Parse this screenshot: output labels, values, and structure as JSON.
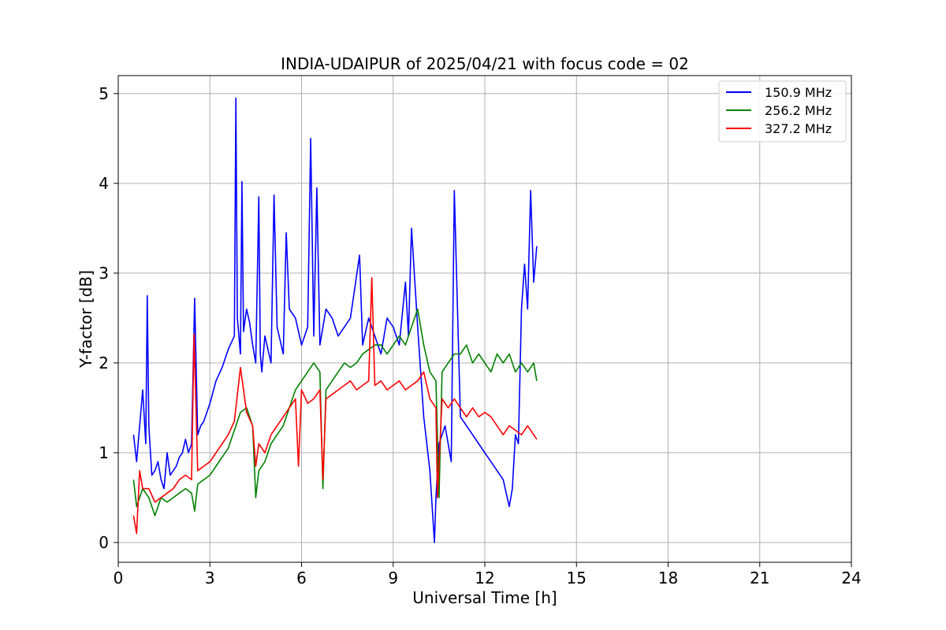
{
  "chart_data": {
    "type": "line",
    "title": "INDIA-UDAIPUR of 2025/04/21 with focus code = 02",
    "xlabel": "Universal Time [h]",
    "ylabel": "Y-factor [dB]",
    "xlim": [
      0,
      24
    ],
    "ylim": [
      -0.22,
      5.2
    ],
    "xticks": [
      0,
      3,
      6,
      9,
      12,
      15,
      18,
      21,
      24
    ],
    "yticks": [
      0,
      1,
      2,
      3,
      4,
      5
    ],
    "grid": true,
    "legend_position": "top-right",
    "series": [
      {
        "name": "150.9 MHz",
        "color": "#0000ff",
        "x": [
          0.5,
          0.6,
          0.75,
          0.8,
          0.9,
          0.95,
          1.0,
          1.1,
          1.2,
          1.3,
          1.4,
          1.5,
          1.6,
          1.7,
          1.8,
          1.9,
          2.0,
          2.1,
          2.2,
          2.3,
          2.4,
          2.5,
          2.6,
          2.7,
          2.8,
          3.0,
          3.2,
          3.4,
          3.6,
          3.8,
          3.85,
          3.9,
          4.0,
          4.05,
          4.1,
          4.2,
          4.3,
          4.4,
          4.5,
          4.6,
          4.65,
          4.7,
          4.8,
          5.0,
          5.1,
          5.2,
          5.4,
          5.5,
          5.6,
          5.8,
          6.0,
          6.2,
          6.3,
          6.4,
          6.5,
          6.6,
          6.8,
          7.0,
          7.2,
          7.4,
          7.6,
          7.9,
          8.0,
          8.2,
          8.4,
          8.6,
          8.8,
          9.0,
          9.2,
          9.4,
          9.5,
          9.6,
          9.8,
          10.0,
          10.2,
          10.35,
          10.4,
          10.5,
          10.7,
          10.9,
          11.0,
          11.2,
          11.4,
          11.6,
          11.8,
          12.0,
          12.2,
          12.4,
          12.6,
          12.8,
          12.9,
          13.0,
          13.1,
          13.2,
          13.3,
          13.4,
          13.5,
          13.6,
          13.7
        ],
        "y": [
          1.2,
          0.9,
          1.5,
          1.7,
          1.1,
          2.75,
          1.3,
          0.75,
          0.8,
          0.9,
          0.7,
          0.6,
          1.0,
          0.75,
          0.8,
          0.85,
          0.95,
          1.0,
          1.15,
          1.0,
          1.1,
          2.72,
          1.2,
          1.3,
          1.35,
          1.55,
          1.8,
          1.95,
          2.15,
          2.3,
          4.95,
          2.5,
          2.1,
          4.02,
          2.35,
          2.6,
          2.45,
          2.2,
          2.0,
          3.85,
          2.1,
          1.9,
          2.3,
          2.0,
          3.87,
          2.4,
          2.1,
          3.45,
          2.6,
          2.5,
          2.2,
          2.4,
          4.5,
          2.3,
          3.95,
          2.2,
          2.6,
          2.5,
          2.3,
          2.4,
          2.5,
          3.2,
          2.2,
          2.5,
          2.3,
          2.1,
          2.5,
          2.4,
          2.2,
          2.9,
          2.3,
          3.5,
          2.4,
          1.4,
          0.8,
          0.0,
          0.5,
          1.1,
          1.3,
          0.9,
          3.92,
          1.4,
          1.3,
          1.2,
          1.1,
          1.0,
          0.9,
          0.8,
          0.7,
          0.4,
          0.6,
          1.2,
          1.1,
          2.6,
          3.1,
          2.6,
          3.92,
          2.9,
          3.3
        ]
      },
      {
        "name": "256.2 MHz",
        "color": "#008000",
        "x": [
          0.5,
          0.6,
          0.8,
          1.0,
          1.2,
          1.4,
          1.6,
          1.8,
          2.0,
          2.2,
          2.4,
          2.5,
          2.6,
          2.8,
          3.0,
          3.2,
          3.4,
          3.6,
          3.8,
          4.0,
          4.2,
          4.4,
          4.5,
          4.6,
          4.8,
          5.0,
          5.2,
          5.4,
          5.6,
          5.8,
          6.0,
          6.2,
          6.4,
          6.6,
          6.7,
          6.8,
          7.0,
          7.2,
          7.4,
          7.6,
          7.8,
          8.0,
          8.2,
          8.4,
          8.6,
          8.8,
          9.0,
          9.2,
          9.4,
          9.6,
          9.8,
          10.0,
          10.2,
          10.4,
          10.5,
          10.6,
          10.8,
          11.0,
          11.2,
          11.4,
          11.6,
          11.8,
          12.0,
          12.2,
          12.4,
          12.6,
          12.8,
          13.0,
          13.2,
          13.4,
          13.6,
          13.7
        ],
        "y": [
          0.7,
          0.4,
          0.6,
          0.5,
          0.3,
          0.5,
          0.45,
          0.5,
          0.55,
          0.6,
          0.55,
          0.35,
          0.65,
          0.7,
          0.75,
          0.85,
          0.95,
          1.05,
          1.25,
          1.45,
          1.5,
          1.3,
          0.5,
          0.8,
          0.9,
          1.1,
          1.2,
          1.3,
          1.5,
          1.7,
          1.8,
          1.9,
          2.0,
          1.9,
          0.6,
          1.7,
          1.8,
          1.9,
          2.0,
          1.95,
          2.0,
          2.1,
          2.15,
          2.2,
          2.2,
          2.1,
          2.2,
          2.3,
          2.2,
          2.4,
          2.6,
          2.2,
          1.9,
          1.8,
          0.5,
          1.9,
          2.0,
          2.1,
          2.1,
          2.2,
          2.0,
          2.1,
          2.0,
          1.9,
          2.1,
          2.0,
          2.1,
          1.9,
          2.0,
          1.9,
          2.0,
          1.8
        ]
      },
      {
        "name": "327.2 MHz",
        "color": "#ff0000",
        "x": [
          0.5,
          0.6,
          0.7,
          0.8,
          1.0,
          1.2,
          1.4,
          1.6,
          1.8,
          2.0,
          2.2,
          2.4,
          2.48,
          2.6,
          2.8,
          3.0,
          3.2,
          3.4,
          3.6,
          3.8,
          4.0,
          4.2,
          4.4,
          4.5,
          4.6,
          4.8,
          5.0,
          5.2,
          5.4,
          5.6,
          5.8,
          5.9,
          6.0,
          6.2,
          6.4,
          6.6,
          6.7,
          6.8,
          7.0,
          7.2,
          7.4,
          7.6,
          7.8,
          8.0,
          8.2,
          8.3,
          8.4,
          8.6,
          8.8,
          9.0,
          9.2,
          9.4,
          9.6,
          9.8,
          10.0,
          10.2,
          10.4,
          10.45,
          10.6,
          10.8,
          11.0,
          11.2,
          11.4,
          11.6,
          11.8,
          12.0,
          12.2,
          12.4,
          12.6,
          12.8,
          13.0,
          13.2,
          13.4,
          13.6,
          13.7
        ],
        "y": [
          0.3,
          0.1,
          0.8,
          0.6,
          0.6,
          0.45,
          0.5,
          0.55,
          0.6,
          0.7,
          0.75,
          0.7,
          2.32,
          0.8,
          0.85,
          0.9,
          1.0,
          1.1,
          1.2,
          1.35,
          1.95,
          1.45,
          1.3,
          0.85,
          1.1,
          1.0,
          1.2,
          1.3,
          1.4,
          1.5,
          1.6,
          0.85,
          1.7,
          1.55,
          1.6,
          1.7,
          0.7,
          1.6,
          1.65,
          1.7,
          1.75,
          1.8,
          1.7,
          1.75,
          1.8,
          2.95,
          1.75,
          1.8,
          1.7,
          1.75,
          1.8,
          1.7,
          1.75,
          1.8,
          1.9,
          1.6,
          1.5,
          0.5,
          1.6,
          1.5,
          1.6,
          1.5,
          1.4,
          1.5,
          1.4,
          1.45,
          1.4,
          1.3,
          1.2,
          1.3,
          1.25,
          1.2,
          1.3,
          1.2,
          1.15
        ]
      }
    ]
  }
}
